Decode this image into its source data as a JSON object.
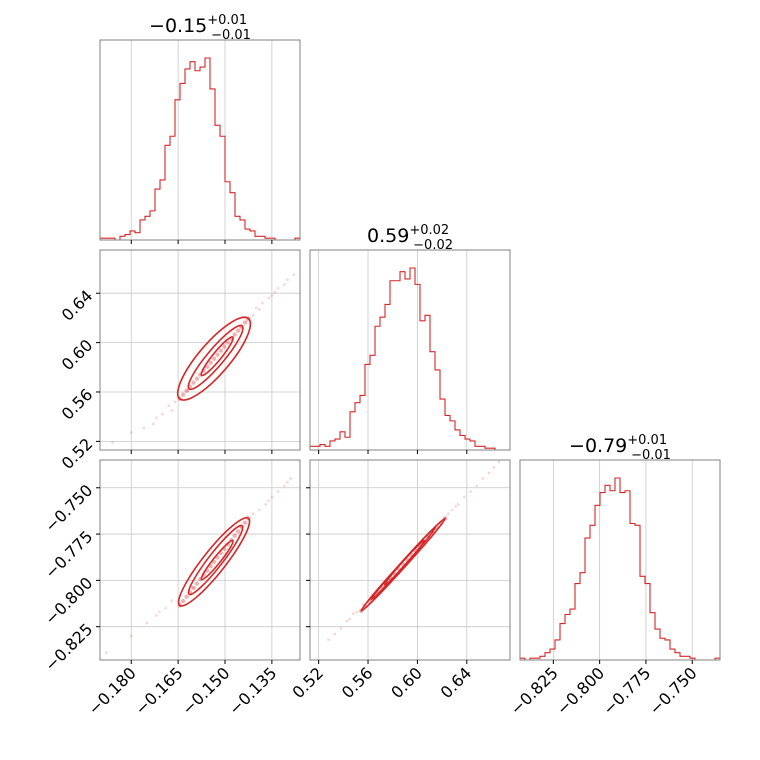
{
  "chart_data": {
    "type": "corner",
    "color": "#d62728",
    "grid": true,
    "parameters": [
      {
        "median": "−0.15",
        "upper_err": "+0.01",
        "lower_err": "−0.01",
        "range": [
          -0.19,
          -0.126
        ],
        "ticks": [
          {
            "v": -0.18,
            "label": "−0.180"
          },
          {
            "v": -0.165,
            "label": "−0.165"
          },
          {
            "v": -0.15,
            "label": "−0.150"
          },
          {
            "v": -0.135,
            "label": "−0.135"
          }
        ]
      },
      {
        "median": "0.59",
        "upper_err": "+0.02",
        "lower_err": "−0.02",
        "range": [
          0.513,
          0.675
        ],
        "ticks": [
          {
            "v": 0.52,
            "label": "0.52"
          },
          {
            "v": 0.56,
            "label": "0.56"
          },
          {
            "v": 0.6,
            "label": "0.60"
          },
          {
            "v": 0.64,
            "label": "0.64"
          }
        ]
      },
      {
        "median": "−0.79",
        "upper_err": "+0.01",
        "lower_err": "−0.01",
        "range": [
          -0.843,
          -0.735
        ],
        "ticks": [
          {
            "v": -0.825,
            "label": "−0.825"
          },
          {
            "v": -0.8,
            "label": "−0.800"
          },
          {
            "v": -0.775,
            "label": "−0.775"
          },
          {
            "v": -0.75,
            "label": "−0.750"
          }
        ]
      }
    ],
    "histograms": [
      {
        "param": 0,
        "heights": [
          0.01,
          0.01,
          0.01,
          0.0,
          0.02,
          0.03,
          0.05,
          0.04,
          0.11,
          0.13,
          0.16,
          0.28,
          0.33,
          0.52,
          0.57,
          0.77,
          0.86,
          0.94,
          0.98,
          0.93,
          0.95,
          1.0,
          0.83,
          0.63,
          0.57,
          0.32,
          0.26,
          0.13,
          0.11,
          0.06,
          0.05,
          0.02,
          0.02,
          0.01,
          0.01,
          0.0,
          0.0,
          0.0,
          0.0,
          0.01
        ]
      },
      {
        "param": 1,
        "heights": [
          0.02,
          0.02,
          0.03,
          0.02,
          0.05,
          0.06,
          0.1,
          0.07,
          0.21,
          0.26,
          0.3,
          0.47,
          0.52,
          0.68,
          0.73,
          0.8,
          0.93,
          0.93,
          0.98,
          0.94,
          1.0,
          0.91,
          0.71,
          0.74,
          0.54,
          0.44,
          0.28,
          0.19,
          0.16,
          0.11,
          0.08,
          0.06,
          0.05,
          0.02,
          0.02,
          0.01,
          0.01,
          0.0,
          0.0,
          0.0
        ]
      },
      {
        "param": 2,
        "heights": [
          0.01,
          0.0,
          0.01,
          0.01,
          0.02,
          0.04,
          0.06,
          0.11,
          0.2,
          0.25,
          0.28,
          0.42,
          0.48,
          0.67,
          0.74,
          0.85,
          0.92,
          0.96,
          0.93,
          1.0,
          0.92,
          0.93,
          0.75,
          0.74,
          0.46,
          0.42,
          0.26,
          0.17,
          0.12,
          0.11,
          0.06,
          0.04,
          0.02,
          0.02,
          0.01,
          0.0,
          0.0,
          0.0,
          0.0,
          0.01
        ]
      }
    ],
    "contours": [
      {
        "x_param": 0,
        "y_param": 1,
        "center": [
          -0.1525,
          0.5895
        ],
        "levels": [
          {
            "p1": [
              -0.1645,
              0.5545
            ],
            "p2": [
              -0.1425,
              0.6195
            ],
            "w": 0.011
          },
          {
            "p1": [
              -0.1615,
              0.5625
            ],
            "p2": [
              -0.1445,
              0.6135
            ],
            "w": 0.006
          },
          {
            "p1": [
              -0.1575,
              0.5735
            ],
            "p2": [
              -0.1475,
              0.6045
            ],
            "w": 0.003
          }
        ],
        "samples": [
          [
            -0.186,
            0.519
          ],
          [
            -0.18,
            0.527
          ],
          [
            -0.176,
            0.531
          ],
          [
            -0.172,
            0.539
          ],
          [
            -0.17,
            0.542
          ],
          [
            -0.168,
            0.549
          ],
          [
            -0.166,
            0.552
          ],
          [
            -0.14,
            0.628
          ],
          [
            -0.138,
            0.632
          ],
          [
            -0.136,
            0.636
          ],
          [
            -0.134,
            0.641
          ],
          [
            -0.133,
            0.644
          ],
          [
            -0.131,
            0.647
          ],
          [
            -0.139,
            0.627
          ],
          [
            -0.141,
            0.622
          ],
          [
            -0.13,
            0.651
          ],
          [
            -0.167,
            0.545
          ],
          [
            -0.173,
            0.534
          ],
          [
            -0.143,
            0.618
          ],
          [
            -0.162,
            0.561
          ],
          [
            -0.145,
            0.612
          ],
          [
            -0.135,
            0.638
          ],
          [
            -0.128,
            0.655
          ]
        ]
      },
      {
        "x_param": 0,
        "y_param": 2,
        "center": [
          -0.1525,
          -0.789
        ],
        "levels": [
          {
            "p1": [
              -0.1645,
              -0.8135
            ],
            "p2": [
              -0.1425,
              -0.7665
            ],
            "w": 0.008
          },
          {
            "p1": [
              -0.1615,
              -0.8075
            ],
            "p2": [
              -0.1445,
              -0.7705
            ],
            "w": 0.005
          },
          {
            "p1": [
              -0.1575,
              -0.7995
            ],
            "p2": [
              -0.1475,
              -0.7785
            ],
            "w": 0.0025
          }
        ],
        "samples": [
          [
            -0.188,
            -0.839
          ],
          [
            -0.18,
            -0.83
          ],
          [
            -0.175,
            -0.823
          ],
          [
            -0.172,
            -0.819
          ],
          [
            -0.169,
            -0.815
          ],
          [
            -0.139,
            -0.762
          ],
          [
            -0.137,
            -0.759
          ],
          [
            -0.135,
            -0.755
          ],
          [
            -0.133,
            -0.752
          ],
          [
            -0.131,
            -0.749
          ],
          [
            -0.129,
            -0.745
          ],
          [
            -0.141,
            -0.764
          ],
          [
            -0.143,
            -0.766
          ],
          [
            -0.167,
            -0.811
          ],
          [
            -0.171,
            -0.817
          ],
          [
            -0.13,
            -0.747
          ],
          [
            -0.136,
            -0.757
          ],
          [
            -0.16,
            -0.804
          ],
          [
            -0.145,
            -0.771
          ]
        ]
      },
      {
        "x_param": 1,
        "y_param": 2,
        "center": [
          0.5905,
          -0.7895
        ],
        "levels": [
          {
            "p1": [
              0.5545,
              -0.8165
            ],
            "p2": [
              0.6225,
              -0.7665
            ],
            "w": 0.005
          },
          {
            "p1": [
              0.5625,
              -0.8105
            ],
            "p2": [
              0.6145,
              -0.7715
            ],
            "w": 0.003
          },
          {
            "p1": [
              0.5735,
              -0.8025
            ],
            "p2": [
              0.6055,
              -0.7785
            ],
            "w": 0.0015
          }
        ],
        "samples": [
          [
            0.528,
            -0.832
          ],
          [
            0.533,
            -0.829
          ],
          [
            0.538,
            -0.826
          ],
          [
            0.543,
            -0.822
          ],
          [
            0.548,
            -0.818
          ],
          [
            0.551,
            -0.817
          ],
          [
            0.628,
            -0.762
          ],
          [
            0.633,
            -0.759
          ],
          [
            0.638,
            -0.755
          ],
          [
            0.643,
            -0.752
          ],
          [
            0.648,
            -0.749
          ],
          [
            0.653,
            -0.745
          ],
          [
            0.658,
            -0.742
          ],
          [
            0.662,
            -0.739
          ],
          [
            0.666,
            -0.736
          ],
          [
            0.625,
            -0.764
          ],
          [
            0.556,
            -0.813
          ],
          [
            0.545,
            -0.821
          ],
          [
            0.631,
            -0.76
          ]
        ]
      }
    ]
  }
}
